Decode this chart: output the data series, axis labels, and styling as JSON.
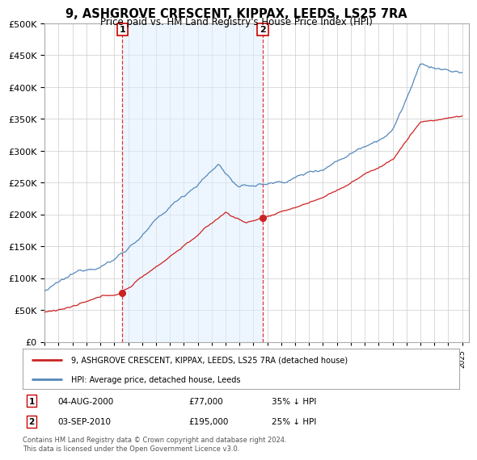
{
  "title": "9, ASHGROVE CRESCENT, KIPPAX, LEEDS, LS25 7RA",
  "subtitle": "Price paid vs. HM Land Registry's House Price Index (HPI)",
  "legend_line1": "9, ASHGROVE CRESCENT, KIPPAX, LEEDS, LS25 7RA (detached house)",
  "legend_line2": "HPI: Average price, detached house, Leeds",
  "footnote": "Contains HM Land Registry data © Crown copyright and database right 2024.\nThis data is licensed under the Open Government Licence v3.0.",
  "sale1_date": "04-AUG-2000",
  "sale1_price": "£77,000",
  "sale1_hpi": "35% ↓ HPI",
  "sale1_year": 2000.58,
  "sale1_value": 77000,
  "sale2_date": "03-SEP-2010",
  "sale2_price": "£195,000",
  "sale2_hpi": "25% ↓ HPI",
  "sale2_year": 2010.67,
  "sale2_value": 195000,
  "hpi_color": "#5588bb",
  "hpi_fill_color": "#ddeeff",
  "property_color": "#cc2222",
  "background_color": "#ffffff",
  "plot_bg_color": "#ffffff",
  "grid_color": "#cccccc",
  "shade_color": "#ddeeff",
  "ylim": [
    0,
    500000
  ],
  "yticks": [
    0,
    50000,
    100000,
    150000,
    200000,
    250000,
    300000,
    350000,
    400000,
    450000,
    500000
  ],
  "xlim_start": 1995.0,
  "xlim_end": 2025.5
}
